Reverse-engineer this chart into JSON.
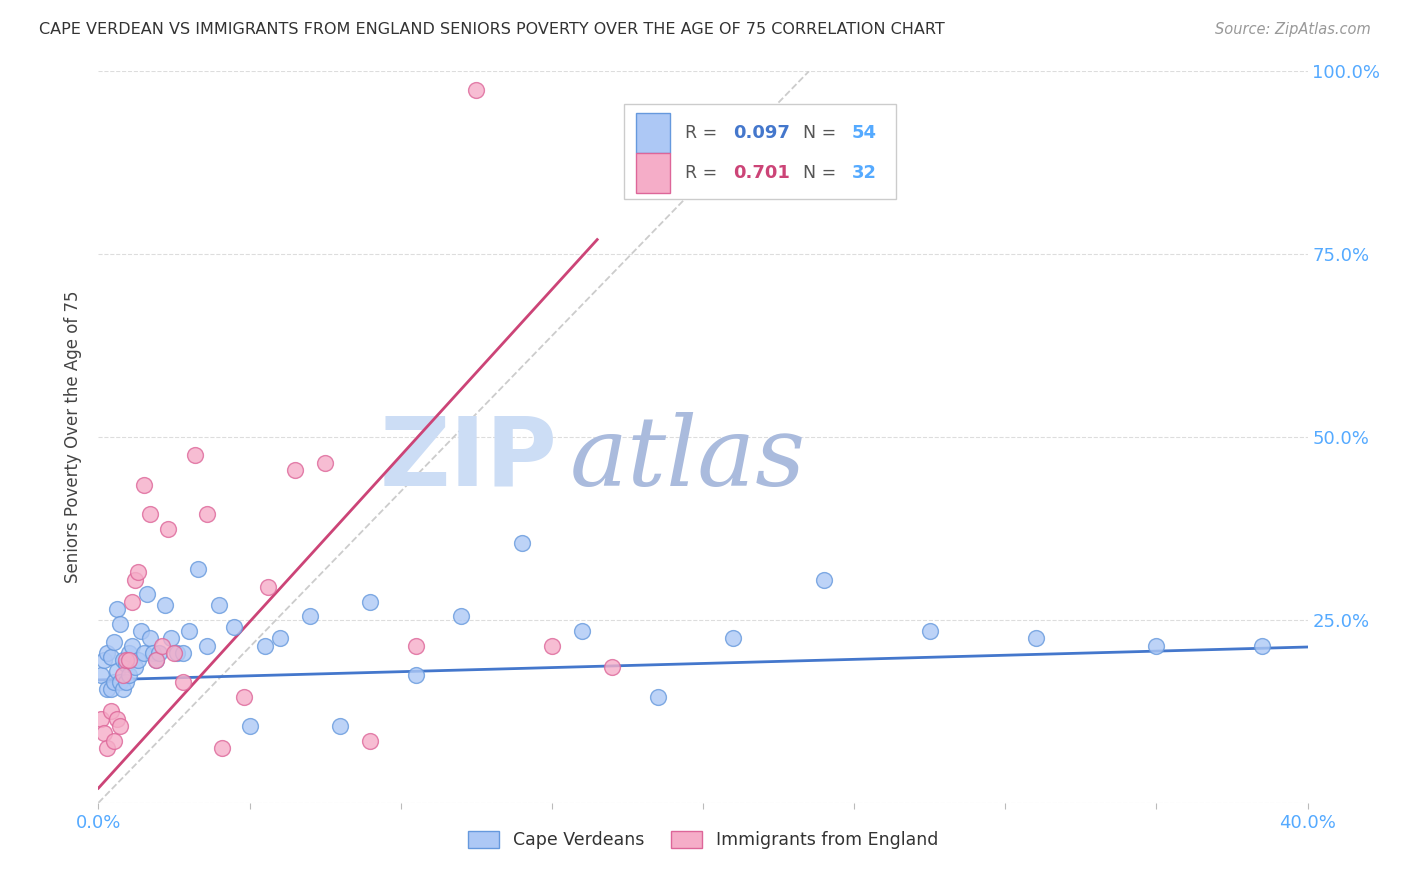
{
  "title": "CAPE VERDEAN VS IMMIGRANTS FROM ENGLAND SENIORS POVERTY OVER THE AGE OF 75 CORRELATION CHART",
  "source": "Source: ZipAtlas.com",
  "ylabel": "Seniors Poverty Over the Age of 75",
  "xlim": [
    0,
    0.4
  ],
  "ylim": [
    0,
    1.0
  ],
  "yticks": [
    0.0,
    0.25,
    0.5,
    0.75,
    1.0
  ],
  "ytick_labels": [
    "",
    "25.0%",
    "50.0%",
    "75.0%",
    "100.0%"
  ],
  "xticks": [
    0.0,
    0.05,
    0.1,
    0.15,
    0.2,
    0.25,
    0.3,
    0.35,
    0.4
  ],
  "blue_R": "0.097",
  "blue_N": "54",
  "pink_R": "0.701",
  "pink_N": "32",
  "blue_scatter_color": "#adc8f5",
  "pink_scatter_color": "#f5adc8",
  "blue_edge_color": "#6699dd",
  "pink_edge_color": "#dd6699",
  "blue_line_color": "#4477cc",
  "pink_line_color": "#cc4477",
  "grid_color": "#dddddd",
  "ref_line_color": "#cccccc",
  "title_color": "#333333",
  "source_color": "#999999",
  "axis_tick_color": "#55aaff",
  "legend_R_color": "#333333",
  "legend_blue_val_color": "#4477cc",
  "legend_pink_val_color": "#cc4477",
  "legend_N_color": "#55aaff",
  "watermark_zip_color": "#ccddf5",
  "watermark_atlas_color": "#aabbdd",
  "blue_scatter_x": [
    0.001,
    0.002,
    0.003,
    0.003,
    0.004,
    0.004,
    0.005,
    0.005,
    0.006,
    0.006,
    0.007,
    0.007,
    0.008,
    0.008,
    0.009,
    0.009,
    0.01,
    0.01,
    0.011,
    0.012,
    0.013,
    0.014,
    0.015,
    0.016,
    0.017,
    0.018,
    0.019,
    0.02,
    0.022,
    0.024,
    0.026,
    0.028,
    0.03,
    0.033,
    0.036,
    0.04,
    0.045,
    0.05,
    0.055,
    0.06,
    0.07,
    0.08,
    0.09,
    0.105,
    0.12,
    0.14,
    0.16,
    0.185,
    0.21,
    0.24,
    0.275,
    0.31,
    0.35,
    0.385
  ],
  "blue_scatter_y": [
    0.175,
    0.195,
    0.205,
    0.155,
    0.2,
    0.155,
    0.22,
    0.165,
    0.265,
    0.18,
    0.245,
    0.165,
    0.195,
    0.155,
    0.19,
    0.165,
    0.205,
    0.175,
    0.215,
    0.185,
    0.195,
    0.235,
    0.205,
    0.285,
    0.225,
    0.205,
    0.195,
    0.205,
    0.27,
    0.225,
    0.205,
    0.205,
    0.235,
    0.32,
    0.215,
    0.27,
    0.24,
    0.105,
    0.215,
    0.225,
    0.255,
    0.105,
    0.275,
    0.175,
    0.255,
    0.355,
    0.235,
    0.145,
    0.225,
    0.305,
    0.235,
    0.225,
    0.215,
    0.215
  ],
  "pink_scatter_x": [
    0.001,
    0.002,
    0.003,
    0.004,
    0.005,
    0.006,
    0.007,
    0.008,
    0.009,
    0.01,
    0.011,
    0.012,
    0.013,
    0.015,
    0.017,
    0.019,
    0.021,
    0.023,
    0.025,
    0.028,
    0.032,
    0.036,
    0.041,
    0.048,
    0.056,
    0.065,
    0.075,
    0.09,
    0.105,
    0.125,
    0.15,
    0.17
  ],
  "pink_scatter_y": [
    0.115,
    0.095,
    0.075,
    0.125,
    0.085,
    0.115,
    0.105,
    0.175,
    0.195,
    0.195,
    0.275,
    0.305,
    0.315,
    0.435,
    0.395,
    0.195,
    0.215,
    0.375,
    0.205,
    0.165,
    0.475,
    0.395,
    0.075,
    0.145,
    0.295,
    0.455,
    0.465,
    0.085,
    0.215,
    0.975,
    0.215,
    0.185
  ],
  "blue_trend_x": [
    0.0,
    0.4
  ],
  "blue_trend_y": [
    0.168,
    0.213
  ],
  "pink_trend_x": [
    0.0,
    0.165
  ],
  "pink_trend_y": [
    0.02,
    0.77
  ],
  "ref_line_x": [
    0.0,
    0.235
  ],
  "ref_line_y": [
    0.0,
    1.0
  ]
}
